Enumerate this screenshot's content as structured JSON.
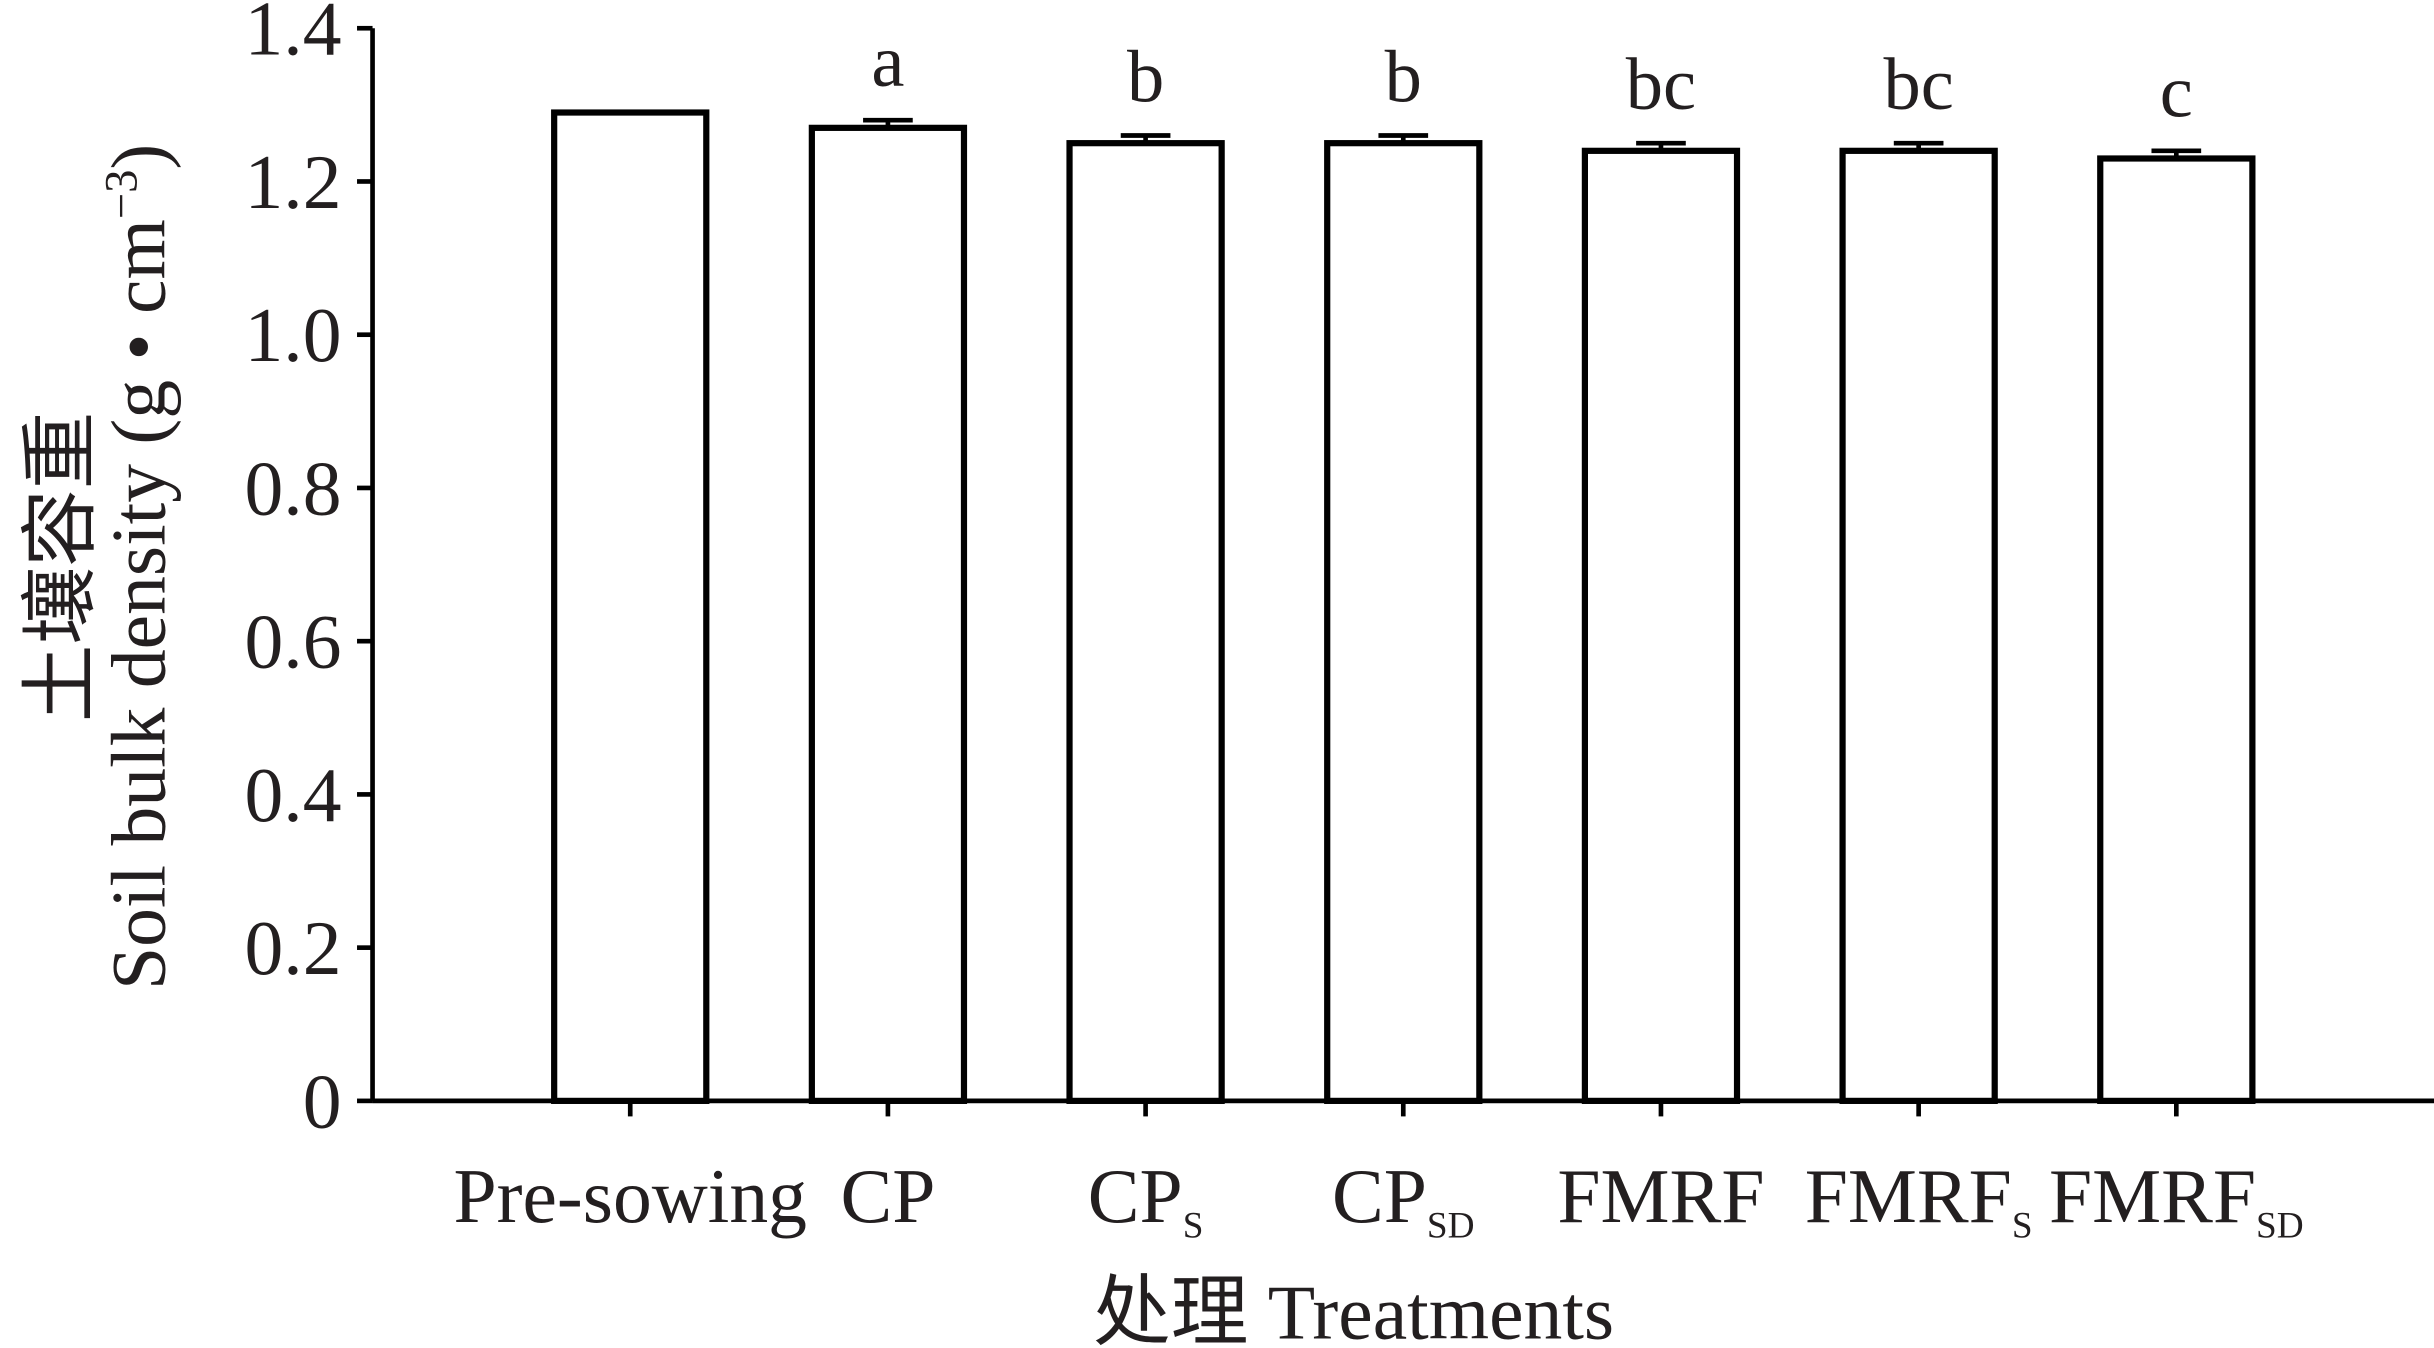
{
  "chart_data": {
    "type": "bar",
    "y_label_cn": "土壤容重",
    "y_label": "Soil bulk density (g • cm",
    "y_label_sup": "−3",
    "y_label_end": ")",
    "x_label": "处理 Treatments",
    "categories": [
      "Pre-sowing",
      "CP",
      "CP",
      "CP",
      "FMRF",
      "FMRF",
      "FMRF"
    ],
    "subscripts": [
      null,
      null,
      "S",
      "SD",
      null,
      "S",
      "SD"
    ],
    "values": [
      1.29,
      1.27,
      1.25,
      1.25,
      1.24,
      1.24,
      1.23
    ],
    "errors": [
      null,
      0.01,
      0.01,
      0.01,
      0.01,
      0.01,
      0.01
    ],
    "letters": [
      null,
      "a",
      "b",
      "b",
      "bc",
      "bc",
      "c"
    ],
    "color": "#ffffff",
    "edge_color": "#000000",
    "ylim": [
      0,
      1.4
    ],
    "yticks": [
      0,
      0.2,
      0.4,
      0.6,
      0.8,
      {
        "value": 1,
        "label": "1.0"
      },
      1.2,
      1.4
    ]
  }
}
